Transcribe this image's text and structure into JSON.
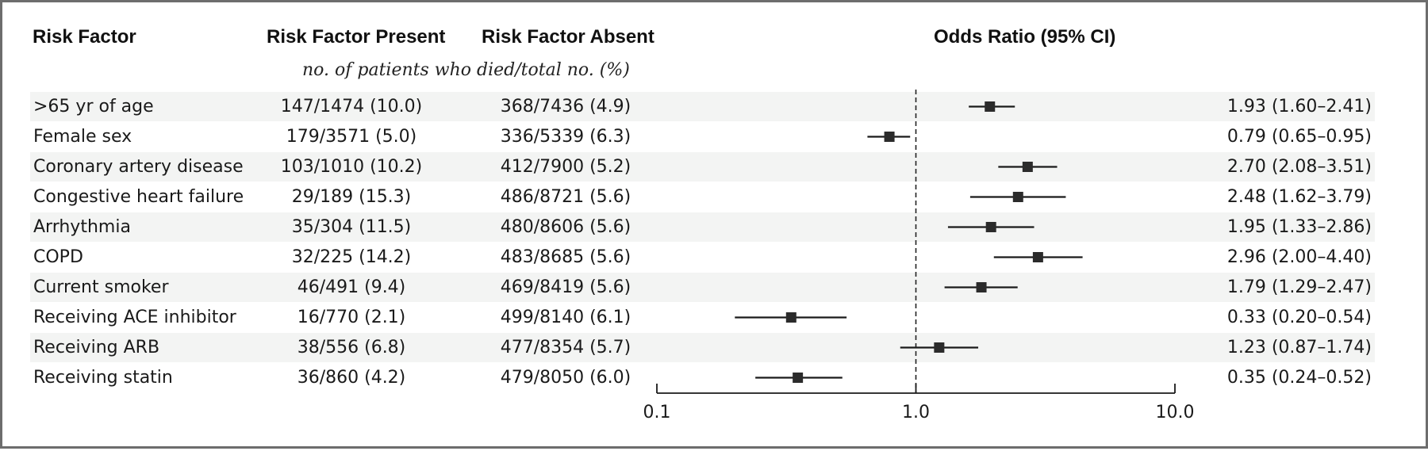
{
  "headers": {
    "risk_factor": "Risk Factor",
    "present": "Risk Factor Present",
    "absent": "Risk Factor Absent",
    "odds_ratio": "Odds Ratio (95% CI)",
    "subheader": "no. of patients who died/total no. (%)"
  },
  "rows": [
    {
      "factor": ">65 yr of age",
      "present": "147/1474 (10.0)",
      "absent": "368/7436 (4.9)",
      "or_text": "1.93 (1.60–2.41)"
    },
    {
      "factor": "Female sex",
      "present": "179/3571 (5.0)",
      "absent": "336/5339 (6.3)",
      "or_text": "0.79 (0.65–0.95)"
    },
    {
      "factor": "Coronary artery disease",
      "present": "103/1010 (10.2)",
      "absent": "412/7900 (5.2)",
      "or_text": "2.70 (2.08–3.51)"
    },
    {
      "factor": "Congestive heart failure",
      "present": "29/189 (15.3)",
      "absent": "486/8721 (5.6)",
      "or_text": "2.48 (1.62–3.79)"
    },
    {
      "factor": "Arrhythmia",
      "present": "35/304 (11.5)",
      "absent": "480/8606 (5.6)",
      "or_text": "1.95 (1.33–2.86)"
    },
    {
      "factor": "COPD",
      "present": "32/225 (14.2)",
      "absent": "483/8685 (5.6)",
      "or_text": "2.96 (2.00–4.40)"
    },
    {
      "factor": "Current smoker",
      "present": "46/491 (9.4)",
      "absent": "469/8419 (5.6)",
      "or_text": "1.79 (1.29–2.47)"
    },
    {
      "factor": "Receiving ACE inhibitor",
      "present": "16/770 (2.1)",
      "absent": "499/8140 (6.1)",
      "or_text": "0.33 (0.20–0.54)"
    },
    {
      "factor": "Receiving ARB",
      "present": "38/556 (6.8)",
      "absent": "477/8354 (5.7)",
      "or_text": "1.23 (0.87–1.74)"
    },
    {
      "factor": "Receiving statin",
      "present": "36/860 (4.2)",
      "absent": "479/8050 (6.0)",
      "or_text": "0.35 (0.24–0.52)"
    }
  ],
  "chart_data": {
    "type": "forest",
    "x_scale": "log",
    "xlim": [
      0.1,
      10.0
    ],
    "xticks": [
      0.1,
      1.0,
      10.0
    ],
    "xtick_labels": [
      "0.1",
      "1.0",
      "10.0"
    ],
    "reference_line": 1.0,
    "grid": false,
    "series": [
      {
        "estimate": 1.93,
        "lower": 1.6,
        "upper": 2.41
      },
      {
        "estimate": 0.79,
        "lower": 0.65,
        "upper": 0.95
      },
      {
        "estimate": 2.7,
        "lower": 2.08,
        "upper": 3.51
      },
      {
        "estimate": 2.48,
        "lower": 1.62,
        "upper": 3.79
      },
      {
        "estimate": 1.95,
        "lower": 1.33,
        "upper": 2.86
      },
      {
        "estimate": 2.96,
        "lower": 2.0,
        "upper": 4.4
      },
      {
        "estimate": 1.79,
        "lower": 1.29,
        "upper": 2.47
      },
      {
        "estimate": 0.33,
        "lower": 0.2,
        "upper": 0.54
      },
      {
        "estimate": 1.23,
        "lower": 0.87,
        "upper": 1.74
      },
      {
        "estimate": 0.35,
        "lower": 0.24,
        "upper": 0.52
      }
    ],
    "colors": {
      "marker": "#2b2b2b",
      "line": "#1a1a1a",
      "row_shade": "#f3f4f3",
      "frame": "#6d6d6d"
    }
  }
}
